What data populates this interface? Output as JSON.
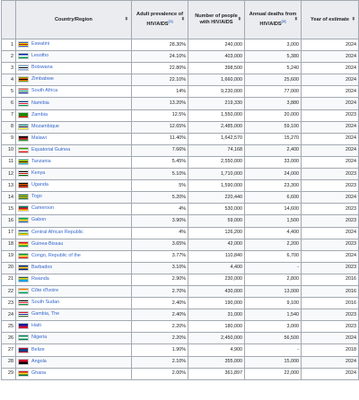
{
  "table": {
    "headers": {
      "rank": "",
      "country": "Country/Region",
      "prevalence": "Adult prevalence of HIV/AIDS",
      "prevalence_ref": "[1]",
      "people": "Number of people with HIV/AIDS",
      "deaths": "Annual deaths from HIV/AIDS",
      "deaths_ref": "[3]",
      "year": "Year of estimate"
    },
    "sort_icon": "sort-arrows-icon",
    "rows": [
      {
        "rank": "1",
        "country": "Eswatini",
        "prevalence": "28.30%",
        "people": "240,000",
        "deaths": "3,000",
        "year": "2024",
        "flag": [
          "#3e5eb9",
          "#ffd900",
          "#b10c0c",
          "#ffd900",
          "#3e5eb9"
        ]
      },
      {
        "rank": "2",
        "country": "Lesotho",
        "prevalence": "24.10%",
        "people": "403,000",
        "deaths": "5,380",
        "year": "2024",
        "flag": [
          "#00209f",
          "#ffffff",
          "#009543"
        ]
      },
      {
        "rank": "3",
        "country": "Botswana",
        "prevalence": "22.80%",
        "people": "398,500",
        "deaths": "5,240",
        "year": "2024",
        "flag": [
          "#75aadb",
          "#ffffff",
          "#000000",
          "#ffffff",
          "#75aadb"
        ]
      },
      {
        "rank": "4",
        "country": "Zimbabwe",
        "prevalence": "22.10%",
        "people": "1,660,000",
        "deaths": "25,600",
        "year": "2024",
        "flag": [
          "#006400",
          "#ffd200",
          "#d40000",
          "#000000",
          "#d40000",
          "#ffd200",
          "#006400"
        ]
      },
      {
        "rank": "5",
        "country": "South Africa",
        "prevalence": "14%",
        "people": "9,230,000",
        "deaths": "77,000",
        "year": "2024",
        "flag": [
          "#e03c31",
          "#ffffff",
          "#007749",
          "#ffffff",
          "#001489"
        ]
      },
      {
        "rank": "6",
        "country": "Namibia",
        "prevalence": "13.20%",
        "people": "219,330",
        "deaths": "3,880",
        "year": "2024",
        "flag": [
          "#003580",
          "#ffffff",
          "#d21034",
          "#ffffff",
          "#009543"
        ]
      },
      {
        "rank": "7",
        "country": "Zambia",
        "prevalence": "12.5%",
        "people": "1,550,000",
        "deaths": "20,000",
        "year": "2023",
        "flag": [
          "#198a00",
          "#198a00",
          "#198a00",
          "#de2010"
        ]
      },
      {
        "rank": "8",
        "country": "Mozambique",
        "prevalence": "12.65%",
        "people": "2,485,000",
        "deaths": "59,100",
        "year": "2024",
        "flag": [
          "#007168",
          "#ffffff",
          "#000000",
          "#ffffff",
          "#fce100"
        ]
      },
      {
        "rank": "9",
        "country": "Malawi",
        "prevalence": "11.40%",
        "people": "1,642,570",
        "deaths": "15,270",
        "year": "2024",
        "flag": [
          "#000000",
          "#ce1126",
          "#339e35"
        ]
      },
      {
        "rank": "10",
        "country": "Equatorial Guinea",
        "prevalence": "7.66%",
        "people": "74,168",
        "deaths": "2,400",
        "year": "2024",
        "flag": [
          "#3e9a00",
          "#ffffff",
          "#e32118"
        ]
      },
      {
        "rank": "11",
        "country": "Tanzania",
        "prevalence": "5.45%",
        "people": "2,550,000",
        "deaths": "33,000",
        "year": "2024",
        "flag": [
          "#1eb53a",
          "#fcd116",
          "#000000",
          "#fcd116",
          "#00a3dd"
        ]
      },
      {
        "rank": "12",
        "country": "Kenya",
        "prevalence": "5.10%",
        "people": "1,710,000",
        "deaths": "24,000",
        "year": "2023",
        "flag": [
          "#000000",
          "#ffffff",
          "#bb0000",
          "#ffffff",
          "#006600"
        ]
      },
      {
        "rank": "13",
        "country": "Uganda",
        "prevalence": "5%",
        "people": "1,590,000",
        "deaths": "23,300",
        "year": "2023",
        "flag": [
          "#000000",
          "#fcdc04",
          "#d90000",
          "#000000",
          "#fcdc04",
          "#d90000"
        ]
      },
      {
        "rank": "14",
        "country": "Togo",
        "prevalence": "5.20%",
        "people": "220,440",
        "deaths": "6,600",
        "year": "2024",
        "flag": [
          "#006a4e",
          "#ffce00",
          "#006a4e",
          "#ffce00",
          "#006a4e"
        ]
      },
      {
        "rank": "15",
        "country": "Cameroon",
        "prevalence": "4%",
        "people": "530,000",
        "deaths": "14,600",
        "year": "2023",
        "flag": [
          "#007a5e",
          "#ce1126",
          "#fcd116"
        ]
      },
      {
        "rank": "16",
        "country": "Gabon",
        "prevalence": "3.90%",
        "people": "59,000",
        "deaths": "1,500",
        "year": "2023",
        "flag": [
          "#009e60",
          "#fcd116",
          "#3a75c4"
        ]
      },
      {
        "rank": "17",
        "country": "Central African Republic",
        "prevalence": "4%",
        "people": "126,200",
        "deaths": "4,400",
        "year": "2024",
        "flag": [
          "#003082",
          "#ffffff",
          "#289728",
          "#ffce00"
        ]
      },
      {
        "rank": "18",
        "country": "Guinea-Bissau",
        "prevalence": "3.65%",
        "people": "42,000",
        "deaths": "2,200",
        "year": "2023",
        "flag": [
          "#ce1126",
          "#fcd116",
          "#009e49"
        ]
      },
      {
        "rank": "19",
        "country": "Congo, Republic of the",
        "prevalence": "3.77%",
        "people": "110,840",
        "deaths": "6,700",
        "year": "2024",
        "flag": [
          "#009543",
          "#fbde4a",
          "#dc241f"
        ]
      },
      {
        "rank": "20",
        "country": "Barbados",
        "prevalence": "3.10%",
        "people": "4,400",
        "deaths": "-",
        "year": "2023",
        "flag": [
          "#00267f",
          "#ffc726",
          "#00267f"
        ]
      },
      {
        "rank": "21",
        "country": "Rwanda",
        "prevalence": "2.90%",
        "people": "230,000",
        "deaths": "2,800",
        "year": "2016",
        "flag": [
          "#20603d",
          "#fad201",
          "#00a1de",
          "#00a1de"
        ]
      },
      {
        "rank": "22",
        "country": "Côte d'Ivoire",
        "prevalence": "2.70%",
        "people": "430,000",
        "deaths": "13,000",
        "year": "2016",
        "flag": [
          "#f77f00",
          "#ffffff",
          "#009e60"
        ]
      },
      {
        "rank": "23",
        "country": "South Sudan",
        "prevalence": "2.40%",
        "people": "190,000",
        "deaths": "9,100",
        "year": "2016",
        "flag": [
          "#000000",
          "#ffffff",
          "#da121a",
          "#ffffff",
          "#078930"
        ]
      },
      {
        "rank": "24",
        "country": "Gambia, The",
        "prevalence": "2.40%",
        "people": "31,000",
        "deaths": "1,540",
        "year": "2023",
        "flag": [
          "#ce1126",
          "#ffffff",
          "#0c1c8c",
          "#ffffff",
          "#3a7728"
        ]
      },
      {
        "rank": "25",
        "country": "Haiti",
        "prevalence": "2.20%",
        "people": "180,000",
        "deaths": "3,000",
        "year": "2023",
        "flag": [
          "#00209f",
          "#d21034"
        ]
      },
      {
        "rank": "26",
        "country": "Nigeria",
        "prevalence": "2.20%",
        "people": "2,450,000",
        "deaths": "56,500",
        "year": "2024",
        "flag": [
          "#008751",
          "#ffffff",
          "#008751"
        ]
      },
      {
        "rank": "27",
        "country": "Belize",
        "prevalence": "1.90%",
        "people": "4,900",
        "deaths": "-",
        "year": "2018",
        "flag": [
          "#ce1126",
          "#003f87",
          "#003f87",
          "#003f87",
          "#ce1126"
        ]
      },
      {
        "rank": "28",
        "country": "Angola",
        "prevalence": "2.10%",
        "people": "355,000",
        "deaths": "15,000",
        "year": "2024",
        "flag": [
          "#cc092f",
          "#000000"
        ]
      },
      {
        "rank": "29",
        "country": "Ghana",
        "prevalence": "2.00%",
        "people": "361,897",
        "deaths": "22,000",
        "year": "2024",
        "flag": [
          "#ce1126",
          "#fcd116",
          "#006b3f"
        ]
      }
    ]
  }
}
